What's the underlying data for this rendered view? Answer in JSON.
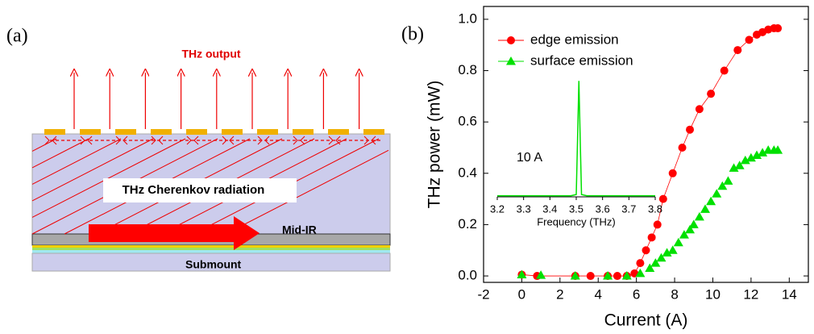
{
  "panel_a": {
    "label": "(a)",
    "output": "THz output",
    "radiation": "THz Cherenkov radiation",
    "midir": "Mid-IR",
    "submount": "Submount"
  },
  "chart_data": [
    {
      "type": "scatter-line",
      "panel_label": "(b)",
      "xlabel": "Current (A)",
      "ylabel": "THz power (mW)",
      "xlim": [
        -2,
        15
      ],
      "ylim": [
        -0.025,
        1.05
      ],
      "xticks": [
        -2,
        0,
        2,
        4,
        6,
        8,
        10,
        12,
        14
      ],
      "yticks": [
        {
          "value": 0,
          "label": "0.0"
        },
        0.2,
        0.4,
        0.6,
        0.8,
        {
          "value": 1,
          "label": "1.0"
        }
      ],
      "series": [
        {
          "name": "edge emission",
          "color": "#ff0000",
          "marker": "circle",
          "x": [
            0,
            0.8,
            2.8,
            3.6,
            4.5,
            5.0,
            5.5,
            5.9,
            6.2,
            6.5,
            6.8,
            7.1,
            7.4,
            7.9,
            8.4,
            8.8,
            9.3,
            9.9,
            10.6,
            11.3,
            11.9,
            12.3,
            12.6,
            12.9,
            13.2,
            13.4
          ],
          "values": [
            0.005,
            0,
            0,
            0,
            0,
            0,
            0,
            0.01,
            0.05,
            0.1,
            0.15,
            0.2,
            0.3,
            0.4,
            0.5,
            0.57,
            0.65,
            0.71,
            0.8,
            0.88,
            0.92,
            0.94,
            0.95,
            0.96,
            0.965,
            0.965
          ]
        },
        {
          "name": "surface emission",
          "color": "#00e000",
          "marker": "triangle",
          "x": [
            0,
            1,
            2.8,
            4.5,
            5.5,
            6.2,
            6.7,
            7.0,
            7.3,
            7.6,
            7.9,
            8.2,
            8.5,
            8.8,
            9.0,
            9.3,
            9.6,
            9.9,
            10.2,
            10.5,
            10.8,
            11.1,
            11.4,
            11.7,
            12.0,
            12.3,
            12.6,
            12.9,
            13.2,
            13.4
          ],
          "values": [
            0.005,
            0.003,
            0,
            0,
            0,
            0.01,
            0.03,
            0.05,
            0.07,
            0.09,
            0.1,
            0.13,
            0.16,
            0.18,
            0.2,
            0.23,
            0.26,
            0.29,
            0.32,
            0.35,
            0.37,
            0.42,
            0.43,
            0.45,
            0.46,
            0.47,
            0.48,
            0.49,
            0.49,
            0.49
          ]
        }
      ]
    },
    {
      "type": "line",
      "annotation": "10 A",
      "xlabel": "Frequency (THz)",
      "color": "#00e000",
      "xlim": [
        3.2,
        3.8
      ],
      "ylim": [
        0,
        1.03
      ],
      "xticks": [
        3.2,
        3.3,
        3.4,
        3.5,
        3.6,
        3.7,
        3.8
      ],
      "x": [
        3.2,
        3.3,
        3.4,
        3.48,
        3.5,
        3.505,
        3.51,
        3.515,
        3.52,
        3.54,
        3.6,
        3.7,
        3.8
      ],
      "values": [
        0.01,
        0.01,
        0.01,
        0.01,
        0.02,
        0.5,
        1,
        0.5,
        0.02,
        0.01,
        0.01,
        0.01,
        0.01
      ]
    }
  ]
}
